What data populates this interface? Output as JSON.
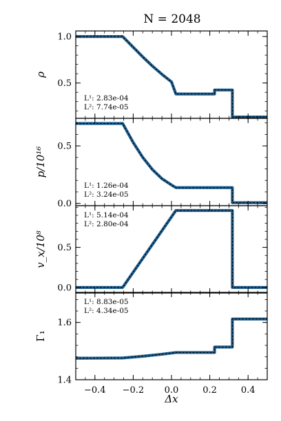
{
  "title": "N = 2048",
  "xlabel": "Δx",
  "colors": {
    "numerical": "#1f5f8f",
    "exact": "#000000"
  },
  "chart_data": [
    {
      "type": "line",
      "ylabel": "ρ",
      "xlim": [
        -0.5,
        0.5
      ],
      "ylim": [
        0.12,
        1.06
      ],
      "yticks": [
        0.5,
        1.0
      ],
      "ytick_labels": [
        "0.5",
        "1.0"
      ],
      "errors": [
        "L¹: 2.83e-04",
        "L²: 7.74e-05"
      ],
      "series": [
        {
          "x": [
            -0.5,
            -0.255,
            -0.2,
            -0.15,
            -0.1,
            -0.05,
            0.0,
            0.023,
            0.225,
            0.225,
            0.318,
            0.318,
            0.5
          ],
          "y": [
            1.0,
            1.0,
            0.885,
            0.781,
            0.683,
            0.594,
            0.512,
            0.382,
            0.382,
            0.425,
            0.425,
            0.134,
            0.134
          ]
        }
      ]
    },
    {
      "type": "line",
      "ylabel": "p/10¹⁶",
      "xlim": [
        -0.5,
        0.5
      ],
      "ylim": [
        -0.02,
        0.74
      ],
      "yticks": [
        0.0,
        0.5
      ],
      "ytick_labels": [
        "0.0",
        "0.5"
      ],
      "errors": [
        "L¹: 1.26e-04",
        "L²: 3.24e-05"
      ],
      "series": [
        {
          "x": [
            -0.5,
            -0.255,
            -0.2,
            -0.15,
            -0.1,
            -0.05,
            0.0,
            0.023,
            0.318,
            0.318,
            0.5
          ],
          "y": [
            0.695,
            0.695,
            0.53,
            0.4,
            0.295,
            0.215,
            0.16,
            0.137,
            0.137,
            0.006,
            0.006
          ]
        }
      ]
    },
    {
      "type": "line",
      "ylabel": "v_x/10⁸",
      "xlim": [
        -0.5,
        0.5
      ],
      "ylim": [
        -0.07,
        1.02
      ],
      "yticks": [
        0.0,
        0.5
      ],
      "ytick_labels": [
        "0.0",
        "0.5"
      ],
      "errors": [
        "L¹: 5.14e-04",
        "L²: 2.80e-04"
      ],
      "series": [
        {
          "x": [
            -0.5,
            -0.255,
            0.023,
            0.318,
            0.318,
            0.5
          ],
          "y": [
            0.0,
            0.0,
            0.96,
            0.96,
            0.0,
            0.0
          ]
        }
      ]
    },
    {
      "type": "line",
      "ylabel": "Γ₁",
      "xlim": [
        -0.5,
        0.5
      ],
      "ylim": [
        1.4,
        1.705
      ],
      "yticks": [
        1.4,
        1.6
      ],
      "ytick_labels": [
        "1.4",
        "1.6"
      ],
      "xticks": [
        -0.4,
        -0.2,
        0.0,
        0.2,
        0.4
      ],
      "xtick_labels": [
        "−0.4",
        "−0.2",
        "0.0",
        "0.2",
        "0.4"
      ],
      "errors": [
        "L¹: 8.83e-05",
        "L²: 4.34e-05"
      ],
      "series": [
        {
          "x": [
            -0.5,
            -0.255,
            -0.15,
            -0.05,
            0.023,
            0.225,
            0.225,
            0.318,
            0.318,
            0.5
          ],
          "y": [
            1.475,
            1.476,
            1.482,
            1.489,
            1.495,
            1.495,
            1.514,
            1.514,
            1.612,
            1.612
          ]
        }
      ]
    }
  ]
}
